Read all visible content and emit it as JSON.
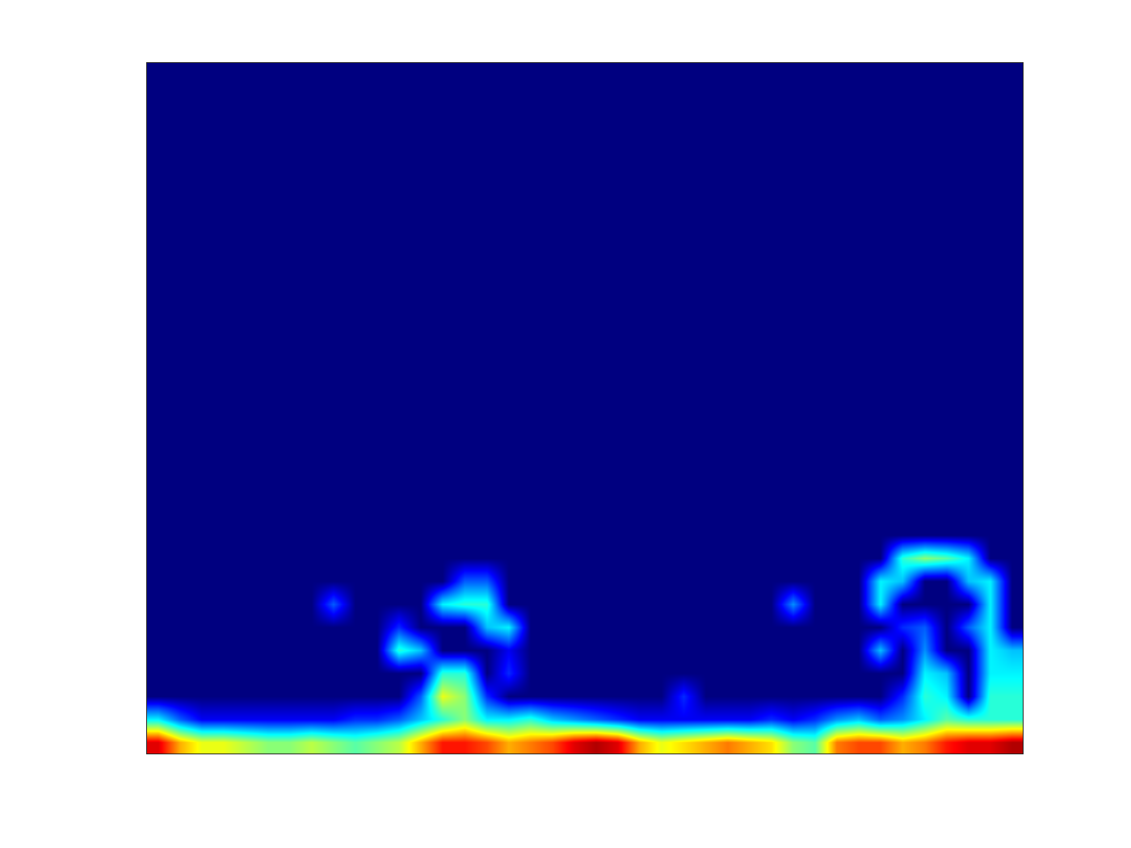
{
  "chart_data": {
    "type": "heatmap",
    "color": "Jet",
    "tick_labels": false,
    "zlim": [
      0,
      1
    ],
    "z": [
      [
        0.9,
        0.7,
        0.6,
        0.6,
        0.55,
        0.5,
        0.5,
        0.55,
        0.5,
        0.45,
        0.5,
        0.55,
        0.7,
        0.85,
        0.85,
        0.8,
        0.7,
        0.75,
        0.8,
        0.9,
        0.95,
        0.9,
        0.7,
        0.6,
        0.65,
        0.7,
        0.75,
        0.7,
        0.65,
        0.5,
        0.45,
        0.75,
        0.8,
        0.8,
        0.7,
        0.75,
        0.85,
        0.9,
        0.9,
        0.95
      ],
      [
        0.35,
        0.2,
        0.1,
        0.1,
        0.1,
        0.1,
        0.1,
        0.1,
        0.1,
        0.15,
        0.15,
        0.2,
        0.3,
        0.4,
        0.5,
        0.35,
        0.35,
        0.4,
        0.3,
        0.25,
        0.2,
        0.15,
        0.1,
        0.1,
        0.1,
        0.1,
        0.1,
        0.1,
        0.15,
        0.1,
        0.15,
        0.25,
        0.3,
        0.2,
        0.25,
        0.35,
        0.45,
        0.4,
        0.4,
        0.4
      ],
      [
        0,
        0,
        0,
        0,
        0,
        0,
        0,
        0,
        0,
        0,
        0,
        0,
        0.2,
        0.6,
        0.5,
        0.15,
        0,
        0,
        0,
        0,
        0,
        0,
        0,
        0,
        0.15,
        0,
        0,
        0,
        0,
        0,
        0,
        0,
        0,
        0,
        0.15,
        0.4,
        0.35,
        0,
        0.4,
        0.4
      ],
      [
        0,
        0,
        0,
        0,
        0,
        0,
        0,
        0,
        0,
        0,
        0,
        0,
        0,
        0.4,
        0.4,
        0,
        0.15,
        0,
        0,
        0,
        0,
        0,
        0,
        0,
        0,
        0,
        0,
        0,
        0,
        0,
        0,
        0,
        0,
        0,
        0,
        0.35,
        0.3,
        0,
        0.35,
        0.35
      ],
      [
        0,
        0,
        0,
        0,
        0,
        0,
        0,
        0,
        0,
        0,
        0,
        0.4,
        0.3,
        0,
        0,
        0,
        0.1,
        0,
        0,
        0,
        0,
        0,
        0,
        0,
        0,
        0,
        0,
        0,
        0,
        0,
        0,
        0,
        0,
        0.3,
        0,
        0.25,
        0,
        0,
        0.35,
        0.3
      ],
      [
        0,
        0,
        0,
        0,
        0,
        0,
        0,
        0,
        0,
        0,
        0,
        0.15,
        0,
        0,
        0,
        0.3,
        0.35,
        0,
        0,
        0,
        0,
        0,
        0,
        0,
        0,
        0,
        0,
        0,
        0,
        0,
        0,
        0,
        0,
        0,
        0.15,
        0.2,
        0,
        0.2,
        0.35,
        0
      ],
      [
        0,
        0,
        0,
        0,
        0,
        0,
        0,
        0,
        0.2,
        0,
        0,
        0,
        0,
        0.35,
        0.4,
        0.4,
        0,
        0,
        0,
        0,
        0,
        0,
        0,
        0,
        0,
        0,
        0,
        0,
        0,
        0.25,
        0,
        0,
        0,
        0.35,
        0,
        0,
        0,
        0,
        0.35,
        0
      ],
      [
        0,
        0,
        0,
        0,
        0,
        0,
        0,
        0,
        0,
        0,
        0,
        0,
        0,
        0,
        0.2,
        0.2,
        0,
        0,
        0,
        0,
        0,
        0,
        0,
        0,
        0,
        0,
        0,
        0,
        0,
        0,
        0,
        0,
        0,
        0.35,
        0.3,
        0,
        0,
        0.3,
        0.35,
        0
      ],
      [
        0,
        0,
        0,
        0,
        0,
        0,
        0,
        0,
        0,
        0,
        0,
        0,
        0,
        0,
        0,
        0,
        0,
        0,
        0,
        0,
        0,
        0,
        0,
        0,
        0,
        0,
        0,
        0,
        0,
        0,
        0,
        0,
        0,
        0,
        0.4,
        0.5,
        0.45,
        0.35,
        0,
        0
      ],
      [
        0,
        0,
        0,
        0,
        0,
        0,
        0,
        0,
        0,
        0,
        0,
        0,
        0,
        0,
        0,
        0,
        0,
        0,
        0,
        0,
        0,
        0,
        0,
        0,
        0,
        0,
        0,
        0,
        0,
        0,
        0,
        0,
        0,
        0,
        0,
        0,
        0,
        0,
        0,
        0
      ],
      [
        0,
        0,
        0,
        0,
        0,
        0,
        0,
        0,
        0,
        0,
        0,
        0,
        0,
        0,
        0,
        0,
        0,
        0,
        0,
        0,
        0,
        0,
        0,
        0,
        0,
        0,
        0,
        0,
        0,
        0,
        0,
        0,
        0,
        0,
        0,
        0,
        0,
        0,
        0,
        0
      ],
      [
        0,
        0,
        0,
        0,
        0,
        0,
        0,
        0,
        0,
        0,
        0,
        0,
        0,
        0,
        0,
        0,
        0,
        0,
        0,
        0,
        0,
        0,
        0,
        0,
        0,
        0,
        0,
        0,
        0,
        0,
        0,
        0,
        0,
        0,
        0,
        0,
        0,
        0,
        0,
        0
      ],
      [
        0,
        0,
        0,
        0,
        0,
        0,
        0,
        0,
        0,
        0,
        0,
        0,
        0,
        0,
        0,
        0,
        0,
        0,
        0,
        0,
        0,
        0,
        0,
        0,
        0,
        0,
        0,
        0,
        0,
        0,
        0,
        0,
        0,
        0,
        0,
        0,
        0,
        0,
        0,
        0
      ],
      [
        0,
        0,
        0,
        0,
        0,
        0,
        0,
        0,
        0,
        0,
        0,
        0,
        0,
        0,
        0,
        0,
        0,
        0,
        0,
        0,
        0,
        0,
        0,
        0,
        0,
        0,
        0,
        0,
        0,
        0,
        0,
        0,
        0,
        0,
        0,
        0,
        0,
        0,
        0,
        0
      ],
      [
        0,
        0,
        0,
        0,
        0,
        0,
        0,
        0,
        0,
        0,
        0,
        0,
        0,
        0,
        0,
        0,
        0,
        0,
        0,
        0,
        0,
        0,
        0,
        0,
        0,
        0,
        0,
        0,
        0,
        0,
        0,
        0,
        0,
        0,
        0,
        0,
        0,
        0,
        0,
        0
      ],
      [
        0,
        0,
        0,
        0,
        0,
        0,
        0,
        0,
        0,
        0,
        0,
        0,
        0,
        0,
        0,
        0,
        0,
        0,
        0,
        0,
        0,
        0,
        0,
        0,
        0,
        0,
        0,
        0,
        0,
        0,
        0,
        0,
        0,
        0,
        0,
        0,
        0,
        0,
        0,
        0
      ],
      [
        0,
        0,
        0,
        0,
        0,
        0,
        0,
        0,
        0,
        0,
        0,
        0,
        0,
        0,
        0,
        0,
        0,
        0,
        0,
        0,
        0,
        0,
        0,
        0,
        0,
        0,
        0,
        0,
        0,
        0,
        0,
        0,
        0,
        0,
        0,
        0,
        0,
        0,
        0,
        0
      ],
      [
        0,
        0,
        0,
        0,
        0,
        0,
        0,
        0,
        0,
        0,
        0,
        0,
        0,
        0,
        0,
        0,
        0,
        0,
        0,
        0,
        0,
        0,
        0,
        0,
        0,
        0,
        0,
        0,
        0,
        0,
        0,
        0,
        0,
        0,
        0,
        0,
        0,
        0,
        0,
        0
      ],
      [
        0,
        0,
        0,
        0,
        0,
        0,
        0,
        0,
        0,
        0,
        0,
        0,
        0,
        0,
        0,
        0,
        0,
        0,
        0,
        0,
        0,
        0,
        0,
        0,
        0,
        0,
        0,
        0,
        0,
        0,
        0,
        0,
        0,
        0,
        0,
        0,
        0,
        0,
        0,
        0
      ],
      [
        0,
        0,
        0,
        0,
        0,
        0,
        0,
        0,
        0,
        0,
        0,
        0,
        0,
        0,
        0,
        0,
        0,
        0,
        0,
        0,
        0,
        0,
        0,
        0,
        0,
        0,
        0,
        0,
        0,
        0,
        0,
        0,
        0,
        0,
        0,
        0,
        0,
        0,
        0,
        0
      ],
      [
        0,
        0,
        0,
        0,
        0,
        0,
        0,
        0,
        0,
        0,
        0,
        0,
        0,
        0,
        0,
        0,
        0,
        0,
        0,
        0,
        0,
        0,
        0,
        0,
        0,
        0,
        0,
        0,
        0,
        0,
        0,
        0,
        0,
        0,
        0,
        0,
        0,
        0,
        0,
        0
      ],
      [
        0,
        0,
        0,
        0,
        0,
        0,
        0,
        0,
        0,
        0,
        0,
        0,
        0,
        0,
        0,
        0,
        0,
        0,
        0,
        0,
        0,
        0,
        0,
        0,
        0,
        0,
        0,
        0,
        0,
        0,
        0,
        0,
        0,
        0,
        0,
        0,
        0,
        0,
        0,
        0
      ],
      [
        0,
        0,
        0,
        0,
        0,
        0,
        0,
        0,
        0,
        0,
        0,
        0,
        0,
        0,
        0,
        0,
        0,
        0,
        0,
        0,
        0,
        0,
        0,
        0,
        0,
        0,
        0,
        0,
        0,
        0,
        0,
        0,
        0,
        0,
        0,
        0,
        0,
        0,
        0,
        0
      ],
      [
        0,
        0,
        0,
        0,
        0,
        0,
        0,
        0,
        0,
        0,
        0,
        0,
        0,
        0,
        0,
        0,
        0,
        0,
        0,
        0,
        0,
        0,
        0,
        0,
        0,
        0,
        0,
        0,
        0,
        0,
        0,
        0,
        0,
        0,
        0,
        0,
        0,
        0,
        0,
        0
      ],
      [
        0,
        0,
        0,
        0,
        0,
        0,
        0,
        0,
        0,
        0,
        0,
        0,
        0,
        0,
        0,
        0,
        0,
        0,
        0,
        0,
        0,
        0,
        0,
        0,
        0,
        0,
        0,
        0,
        0,
        0,
        0,
        0,
        0,
        0,
        0,
        0,
        0,
        0,
        0,
        0
      ],
      [
        0,
        0,
        0,
        0,
        0,
        0,
        0,
        0,
        0,
        0,
        0,
        0,
        0,
        0,
        0,
        0,
        0,
        0,
        0,
        0,
        0,
        0,
        0,
        0,
        0,
        0,
        0,
        0,
        0,
        0,
        0,
        0,
        0,
        0,
        0,
        0,
        0,
        0,
        0,
        0
      ],
      [
        0,
        0,
        0,
        0,
        0,
        0,
        0,
        0,
        0,
        0,
        0,
        0,
        0,
        0,
        0,
        0,
        0,
        0,
        0,
        0,
        0,
        0,
        0,
        0,
        0,
        0,
        0,
        0,
        0,
        0,
        0,
        0,
        0,
        0,
        0,
        0,
        0,
        0,
        0,
        0
      ],
      [
        0,
        0,
        0,
        0,
        0,
        0,
        0,
        0,
        0,
        0,
        0,
        0,
        0,
        0,
        0,
        0,
        0,
        0,
        0,
        0,
        0,
        0,
        0,
        0,
        0,
        0,
        0,
        0,
        0,
        0,
        0,
        0,
        0,
        0,
        0,
        0,
        0,
        0,
        0,
        0
      ],
      [
        0,
        0,
        0,
        0,
        0,
        0,
        0,
        0,
        0,
        0,
        0,
        0,
        0,
        0,
        0,
        0,
        0,
        0,
        0,
        0,
        0,
        0,
        0,
        0,
        0,
        0,
        0,
        0,
        0,
        0,
        0,
        0,
        0,
        0,
        0,
        0,
        0,
        0,
        0,
        0
      ],
      [
        0,
        0,
        0,
        0,
        0,
        0,
        0,
        0,
        0,
        0,
        0,
        0,
        0,
        0,
        0,
        0,
        0,
        0,
        0,
        0,
        0,
        0,
        0,
        0,
        0,
        0,
        0,
        0,
        0,
        0,
        0,
        0,
        0,
        0,
        0,
        0,
        0,
        0,
        0,
        0
      ]
    ]
  }
}
